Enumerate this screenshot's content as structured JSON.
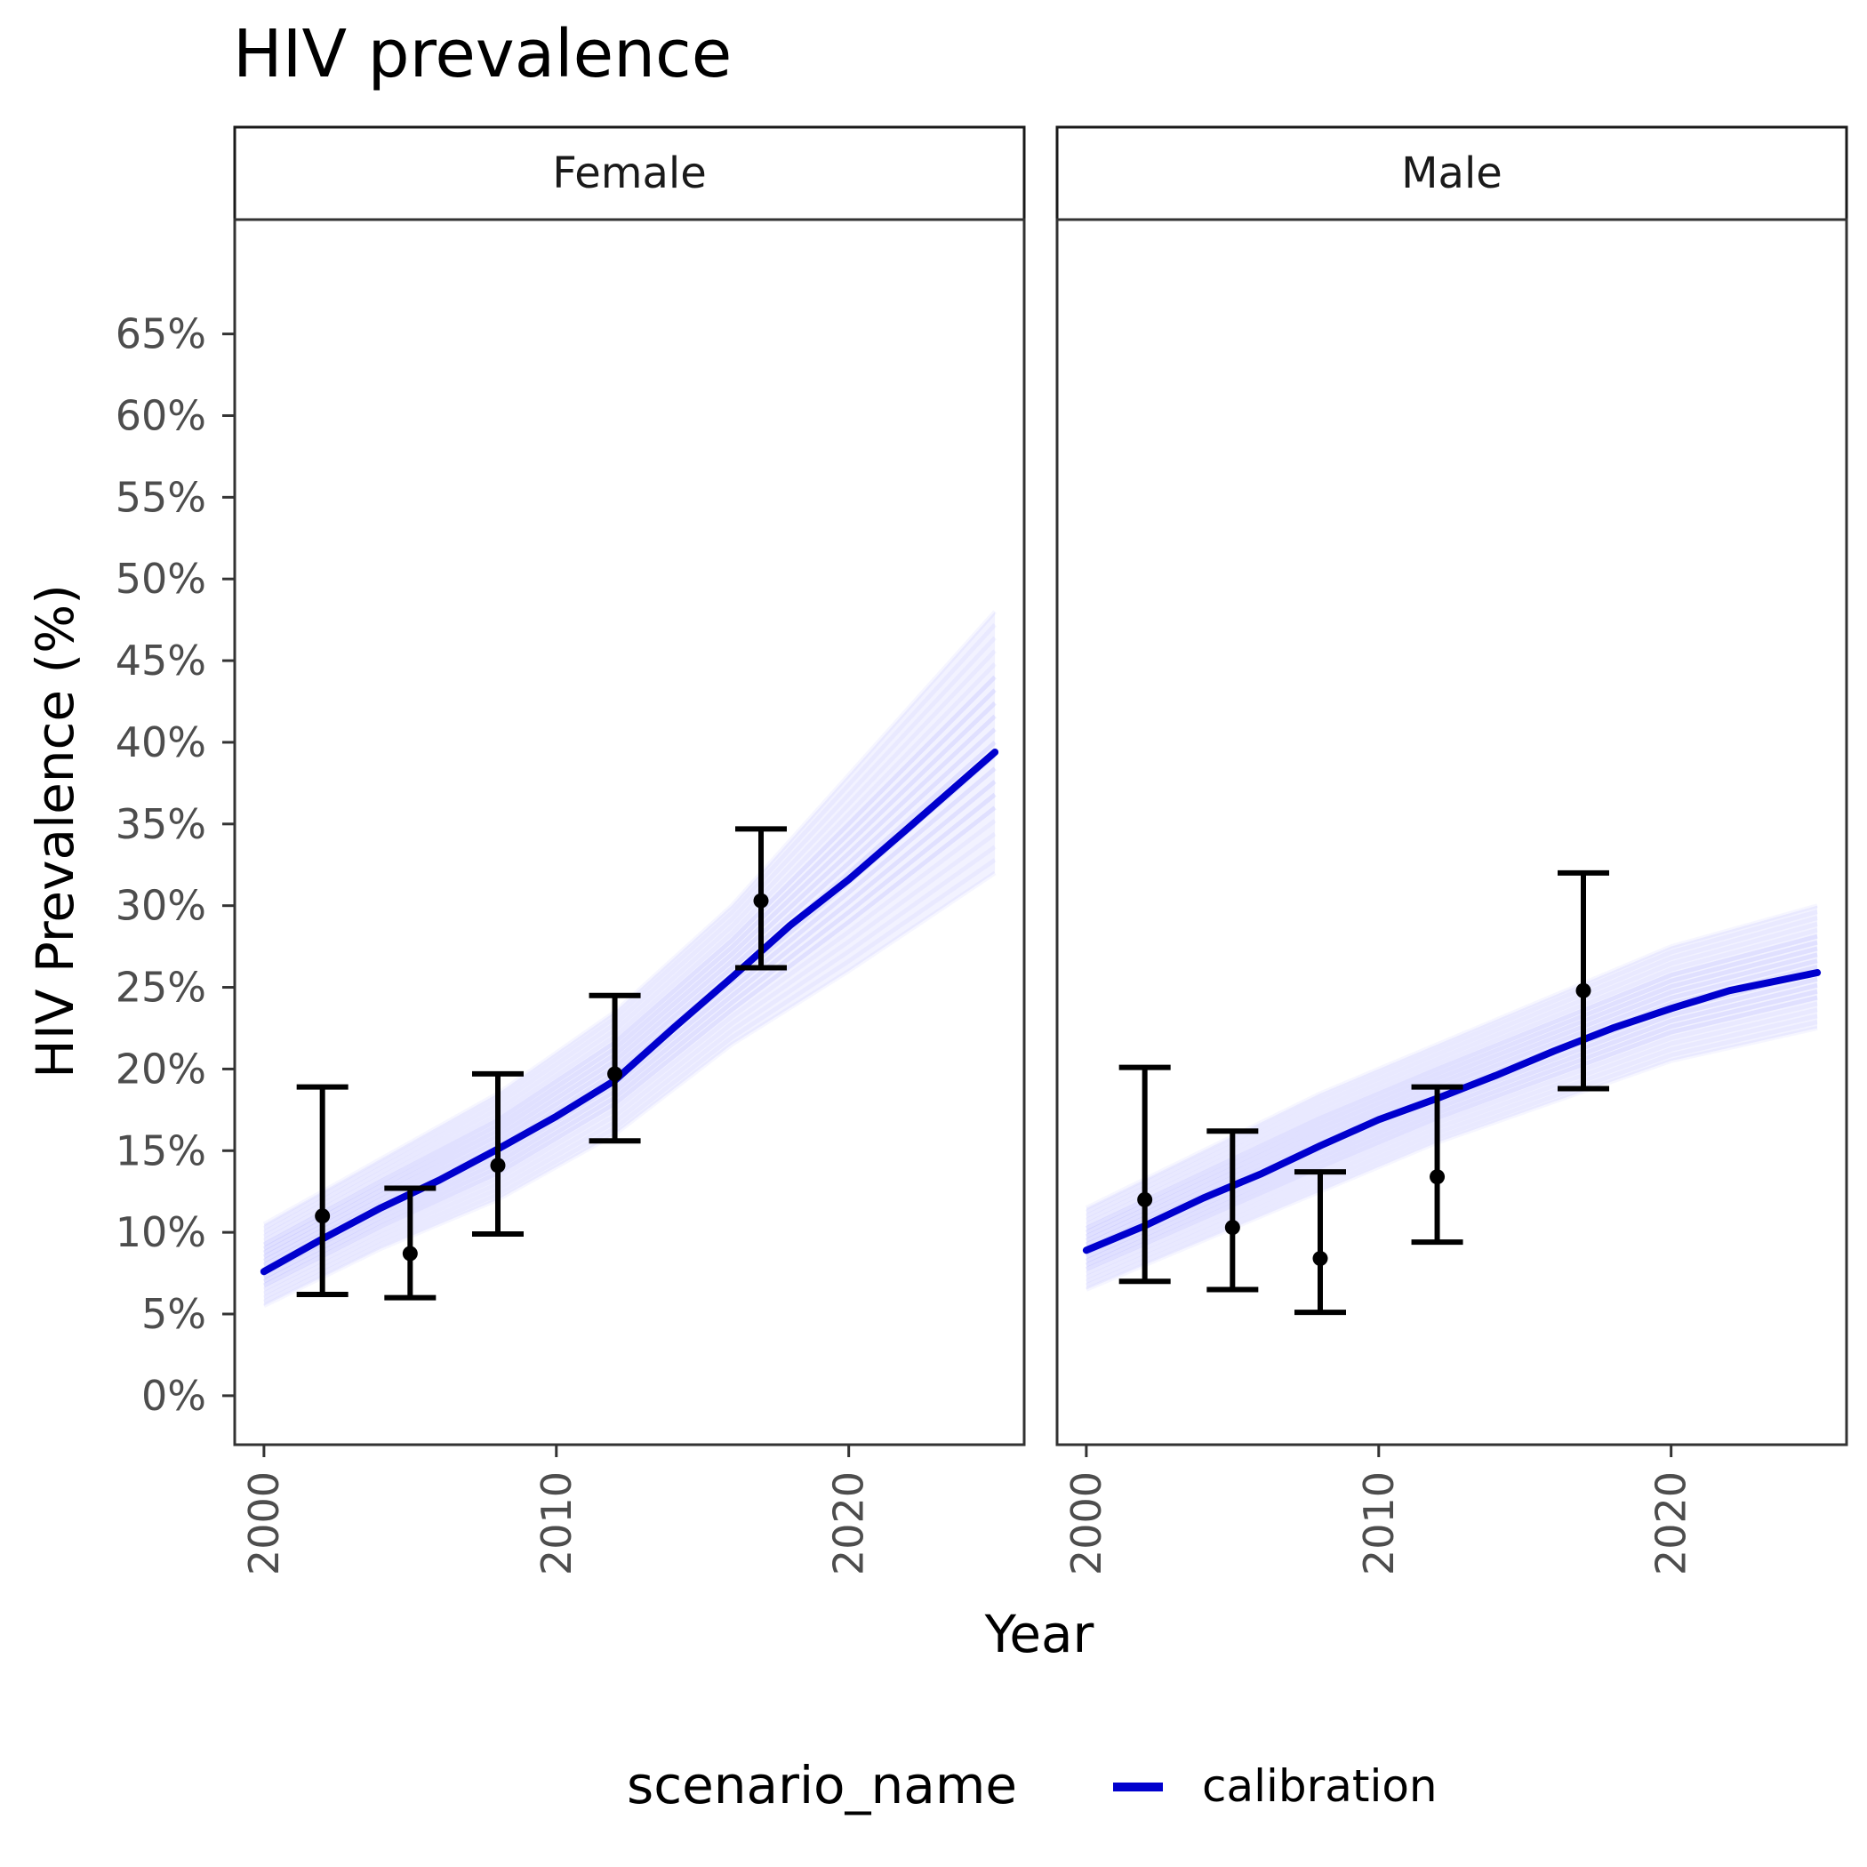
{
  "chart_data": {
    "type": "line",
    "title": "HIV prevalence",
    "xlabel": "Year",
    "ylabel": "HIV Prevalence (%)",
    "xlim": [
      1999,
      2026
    ],
    "ylim": [
      -3,
      72
    ],
    "x_ticks": [
      2000,
      2010,
      2020
    ],
    "y_ticks": [
      0,
      5,
      10,
      15,
      20,
      25,
      30,
      35,
      40,
      45,
      50,
      55,
      60,
      65
    ],
    "y_tick_suffix": "%",
    "grid": false,
    "legend": {
      "position": "bottom",
      "title": "scenario_name",
      "entries": [
        {
          "label": "calibration",
          "color": "#0000CD"
        }
      ]
    },
    "colors": {
      "line": "#0000CD",
      "band": "#0000FF",
      "observed": "#000000",
      "axis_text": "#4D4D4D"
    },
    "panels": [
      {
        "label": "Female",
        "series": [
          {
            "name": "calibration",
            "x": [
              2000,
              2002,
              2004,
              2006,
              2008,
              2010,
              2012,
              2014,
              2016,
              2018,
              2020,
              2022,
              2025
            ],
            "values": [
              7.6,
              9.6,
              11.5,
              13.2,
              15.1,
              17.1,
              19.3,
              22.5,
              25.6,
              28.8,
              31.6,
              34.7,
              39.4
            ]
          }
        ],
        "band": {
          "x": [
            2000,
            2004,
            2008,
            2012,
            2016,
            2020,
            2025
          ],
          "lower": [
            5.5,
            9.0,
            12.0,
            16.0,
            21.5,
            26.0,
            32.0
          ],
          "upper": [
            10.5,
            14.5,
            18.5,
            23.5,
            30.0,
            38.0,
            48.0
          ]
        },
        "observed": [
          {
            "x": 2002,
            "y": 11.0,
            "lower": 6.2,
            "upper": 18.9
          },
          {
            "x": 2005,
            "y": 8.7,
            "lower": 6.0,
            "upper": 12.7
          },
          {
            "x": 2008,
            "y": 14.1,
            "lower": 9.9,
            "upper": 19.7
          },
          {
            "x": 2012,
            "y": 19.7,
            "lower": 15.6,
            "upper": 24.5
          },
          {
            "x": 2017,
            "y": 30.3,
            "lower": 26.2,
            "upper": 34.7
          }
        ]
      },
      {
        "label": "Male",
        "series": [
          {
            "name": "calibration",
            "x": [
              2000,
              2002,
              2004,
              2006,
              2008,
              2010,
              2012,
              2014,
              2016,
              2018,
              2020,
              2022,
              2025
            ],
            "values": [
              8.9,
              10.4,
              12.1,
              13.6,
              15.3,
              16.9,
              18.2,
              19.6,
              21.1,
              22.5,
              23.7,
              24.8,
              25.9
            ]
          }
        ],
        "band": {
          "x": [
            2000,
            2004,
            2008,
            2012,
            2016,
            2020,
            2025
          ],
          "lower": [
            6.5,
            9.5,
            12.5,
            15.5,
            18.0,
            20.5,
            22.5
          ],
          "upper": [
            11.5,
            15.0,
            18.5,
            21.5,
            24.5,
            27.5,
            30.0
          ]
        },
        "observed": [
          {
            "x": 2002,
            "y": 12.0,
            "lower": 7.0,
            "upper": 20.1
          },
          {
            "x": 2005,
            "y": 10.3,
            "lower": 6.5,
            "upper": 16.2
          },
          {
            "x": 2008,
            "y": 8.4,
            "lower": 5.1,
            "upper": 13.7
          },
          {
            "x": 2012,
            "y": 13.4,
            "lower": 9.4,
            "upper": 18.9
          },
          {
            "x": 2017,
            "y": 24.8,
            "lower": 18.8,
            "upper": 32.0
          }
        ]
      }
    ]
  }
}
